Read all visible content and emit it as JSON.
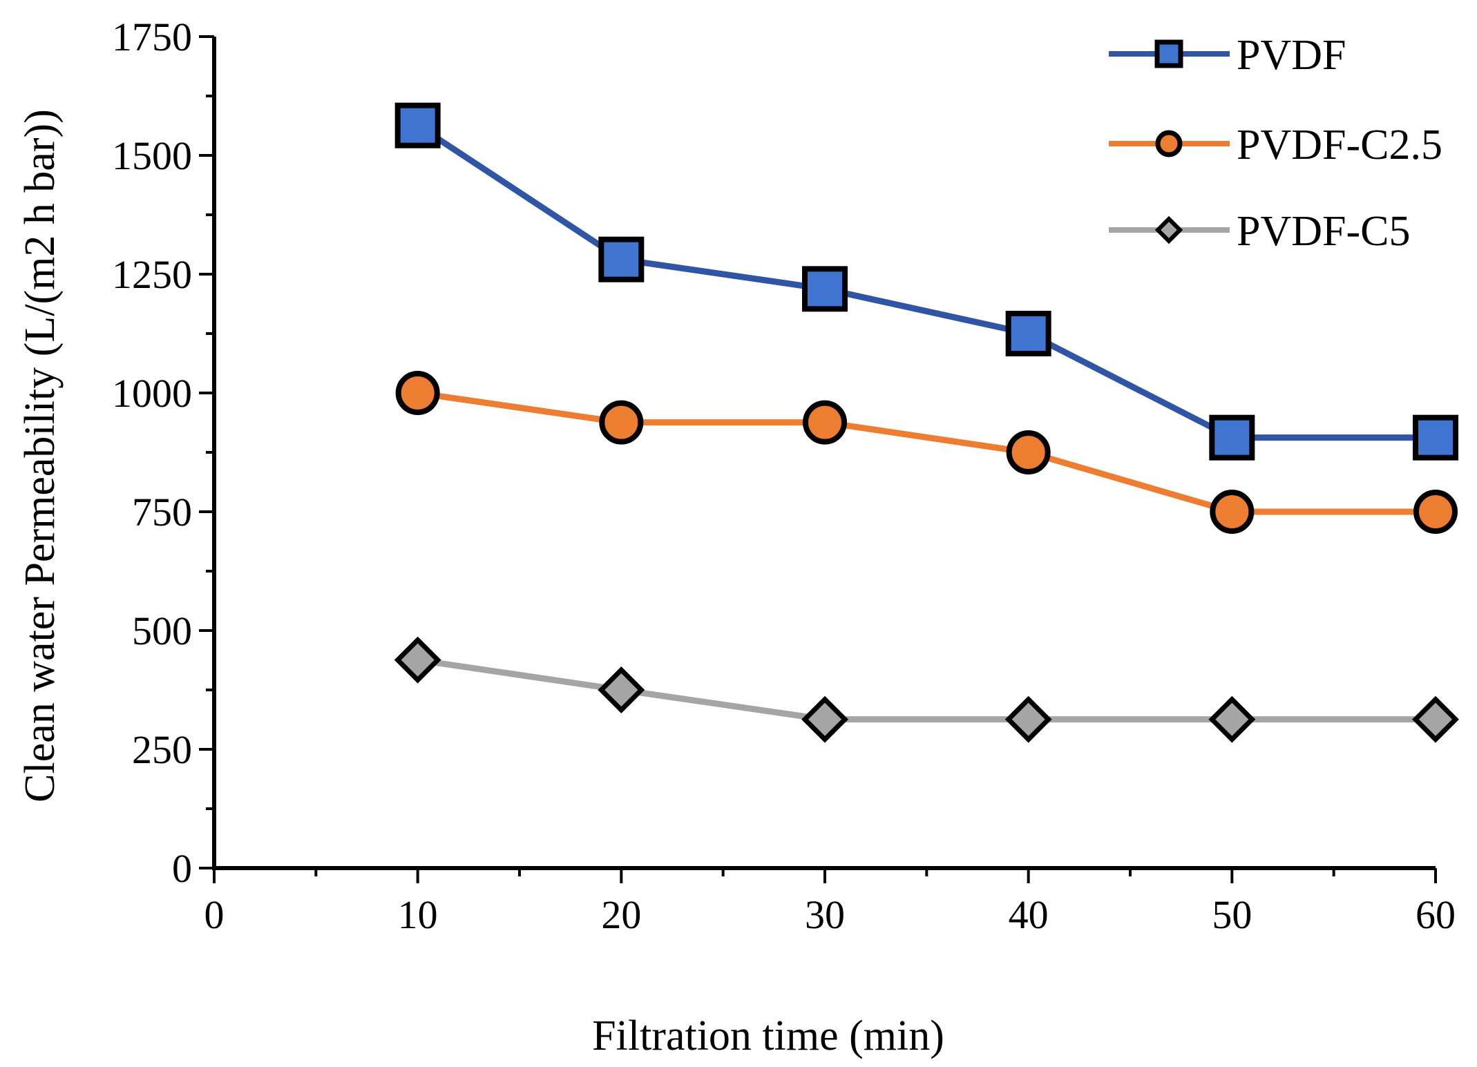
{
  "chart_data": {
    "type": "line",
    "title": "",
    "xlabel": "Filtration time (min)",
    "ylabel": "Clean water Permeability (L/(m2 h bar))",
    "xlim": [
      0,
      60
    ],
    "ylim": [
      0,
      1750
    ],
    "x_ticks": [
      "0",
      "10",
      "20",
      "30",
      "40",
      "50",
      "60"
    ],
    "y_ticks": [
      "0",
      "250",
      "500",
      "750",
      "1000",
      "1250",
      "1500",
      "1750"
    ],
    "grid": false,
    "legend_position": "top-right",
    "x": [
      10,
      20,
      30,
      40,
      50,
      60
    ],
    "series": [
      {
        "name": "PVDF",
        "values": [
          1563,
          1281,
          1219,
          1125,
          906,
          906
        ],
        "color": "#2F55A4",
        "marker_color": "#3F74D0",
        "marker": "square"
      },
      {
        "name": "PVDF-C2.5",
        "values": [
          1000,
          938,
          938,
          875,
          750,
          750
        ],
        "color": "#ED7D31",
        "marker_color": "#ED7D31",
        "marker": "circle"
      },
      {
        "name": "PVDF-C5",
        "values": [
          438,
          375,
          313,
          313,
          313,
          313
        ],
        "color": "#A5A5A5",
        "marker_color": "#A5A5A5",
        "marker": "diamond"
      }
    ]
  }
}
